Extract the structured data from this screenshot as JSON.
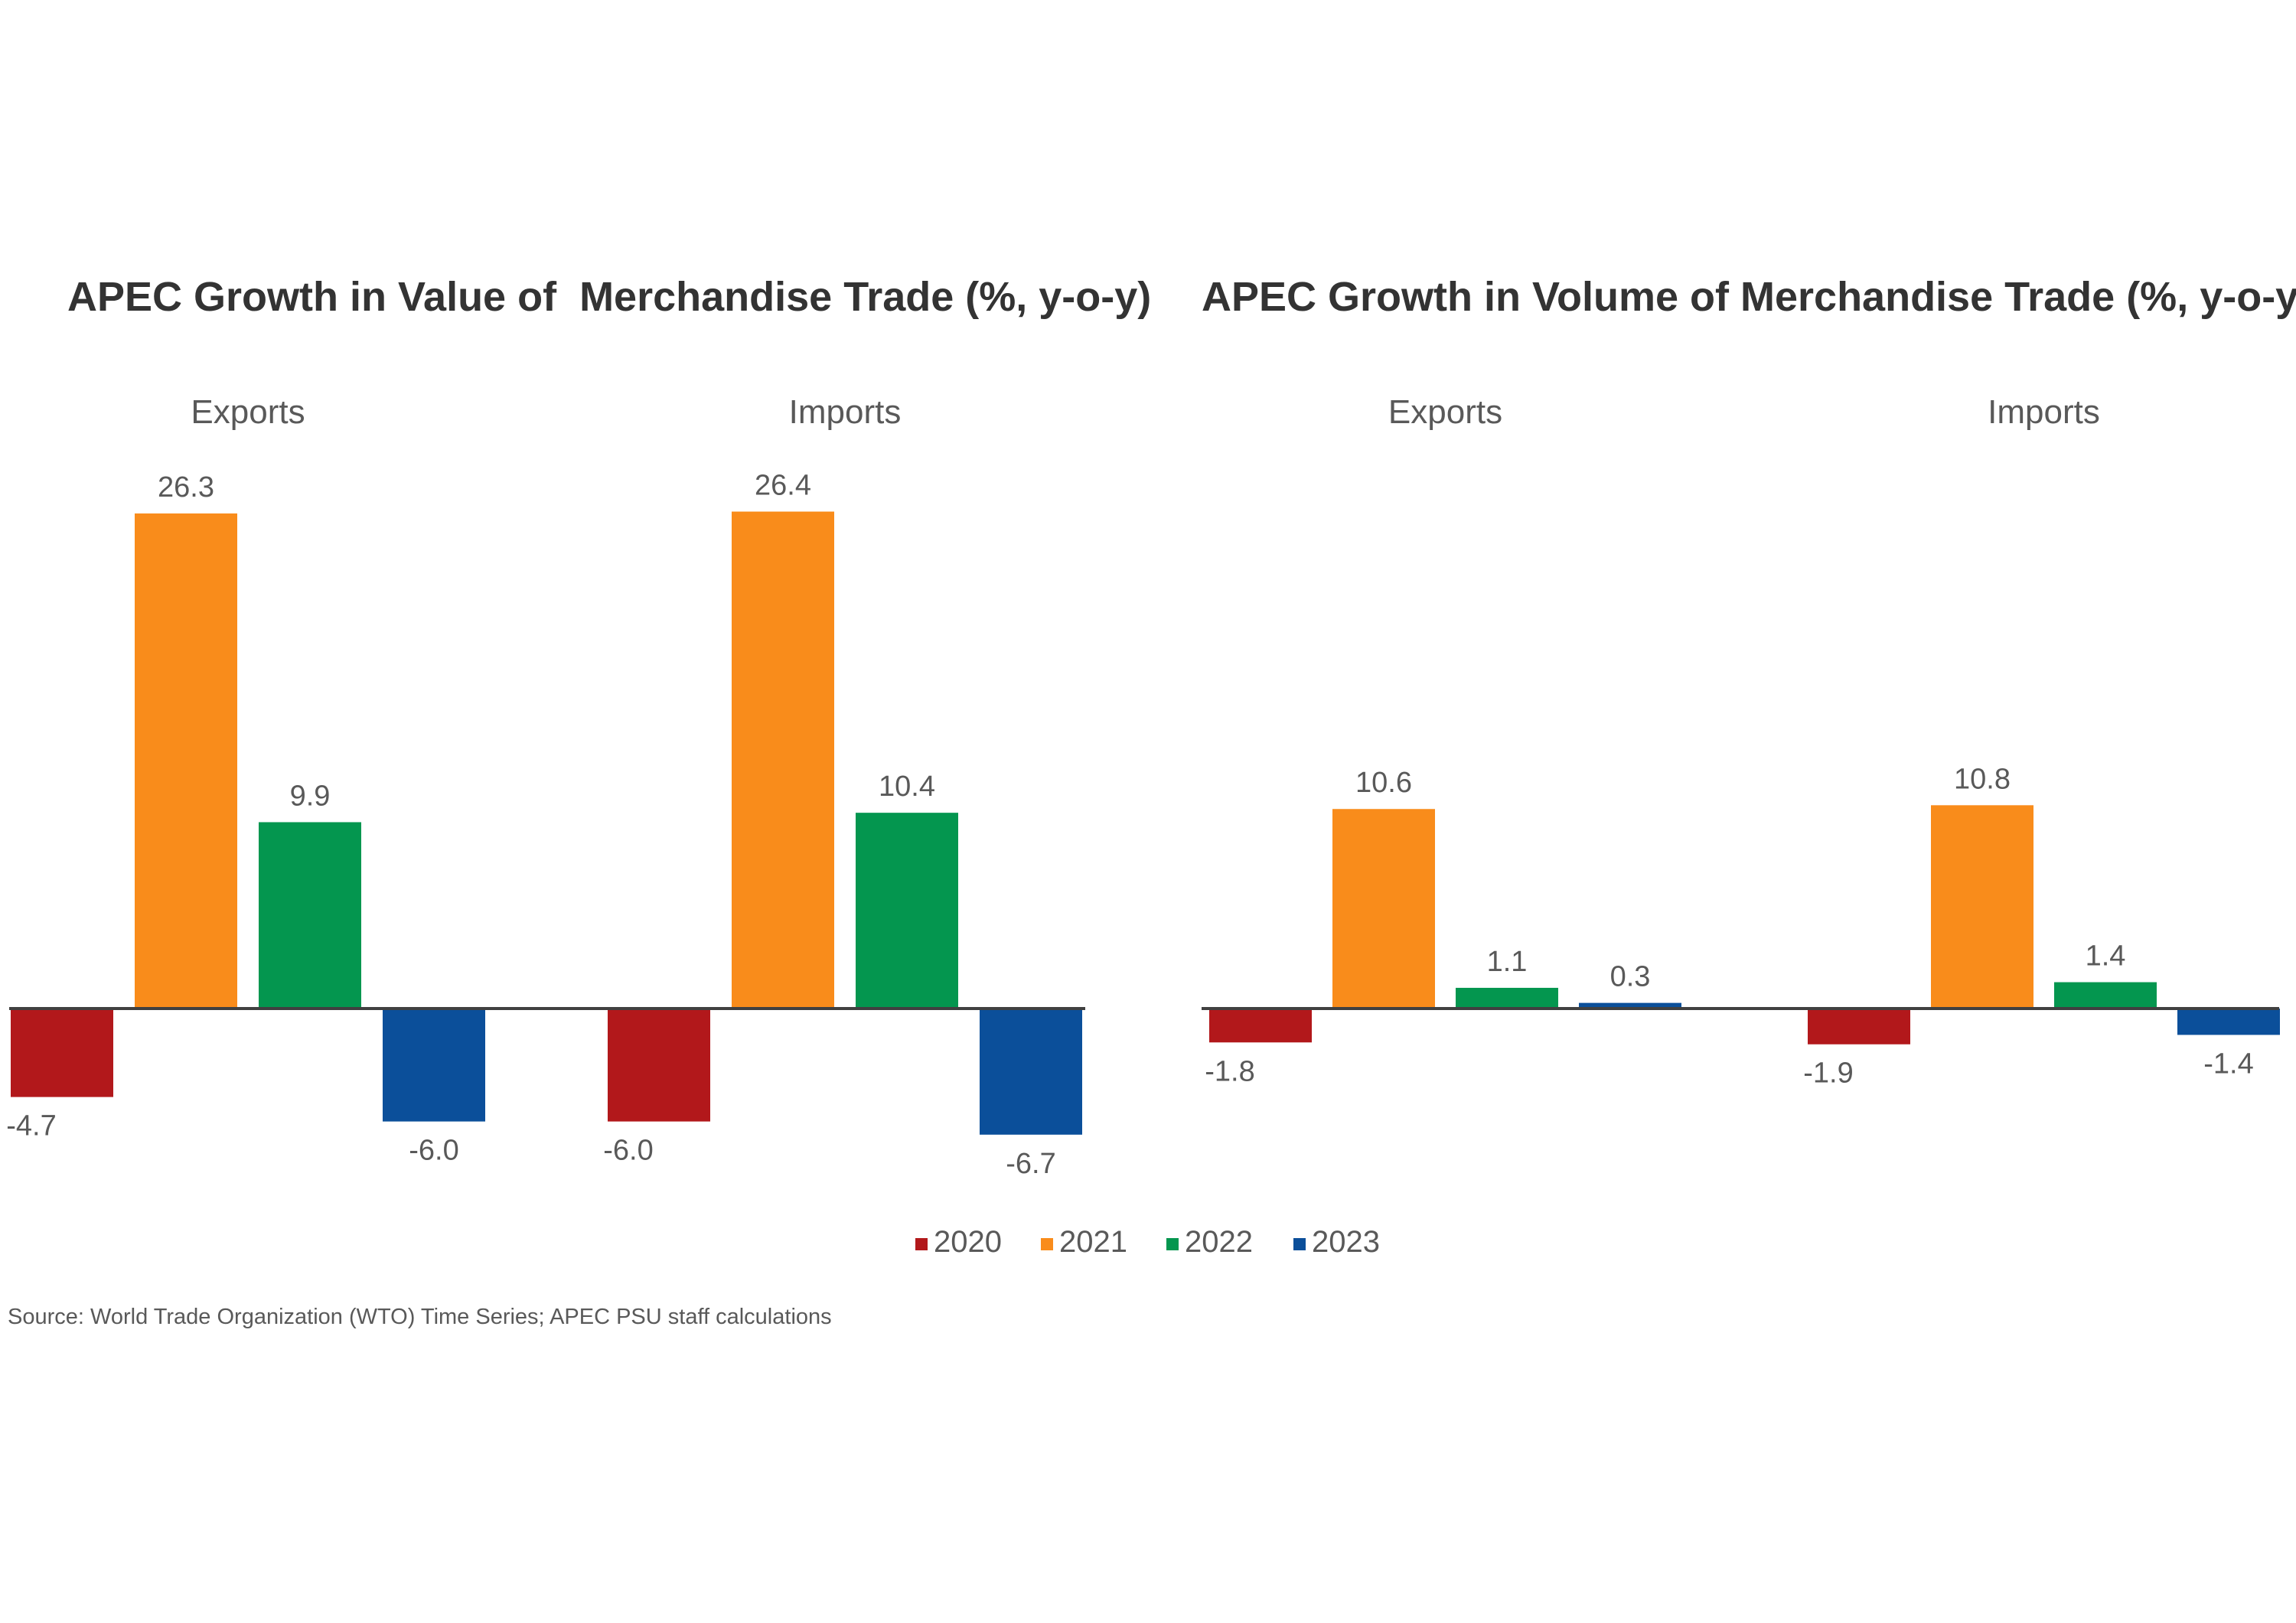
{
  "legend": [
    {
      "label": "2020",
      "color": "#b2181b"
    },
    {
      "label": "2021",
      "color": "#f98c1b"
    },
    {
      "label": "2022",
      "color": "#04964f"
    },
    {
      "label": "2023",
      "color": "#0b4f9a"
    }
  ],
  "source": "Source: World Trade Organization (WTO) Time Series; APEC PSU staff calculations",
  "chart_data": [
    {
      "type": "bar",
      "title": "APEC Growth in Value of  Merchandise Trade (%, y-o-y)",
      "categories": [
        "Exports",
        "Imports"
      ],
      "series": [
        {
          "name": "2020",
          "values": [
            -4.7,
            -6.0
          ]
        },
        {
          "name": "2021",
          "values": [
            26.3,
            26.4
          ]
        },
        {
          "name": "2022",
          "values": [
            9.9,
            10.4
          ]
        },
        {
          "name": "2023",
          "values": [
            -6.0,
            -6.7
          ]
        }
      ],
      "data_labels": [
        [
          "-4.7",
          "26.3",
          "9.9",
          "-6.0"
        ],
        [
          "-6.0",
          "26.4",
          "10.4",
          "-6.7"
        ]
      ],
      "grid": false,
      "legend_position": "bottom"
    },
    {
      "type": "bar",
      "title": "APEC Growth in Volume of Merchandise Trade (%, y-o-y)",
      "categories": [
        "Exports",
        "Imports"
      ],
      "series": [
        {
          "name": "2020",
          "values": [
            -1.8,
            -1.9
          ]
        },
        {
          "name": "2021",
          "values": [
            10.6,
            10.8
          ]
        },
        {
          "name": "2022",
          "values": [
            1.1,
            1.4
          ]
        },
        {
          "name": "2023",
          "values": [
            0.3,
            -1.4
          ]
        }
      ],
      "data_labels": [
        [
          "-1.8",
          "10.6",
          "1.1",
          "0.3"
        ],
        [
          "-1.9",
          "10.8",
          "1.4",
          "-1.4"
        ]
      ],
      "grid": false,
      "legend_position": "bottom"
    }
  ]
}
